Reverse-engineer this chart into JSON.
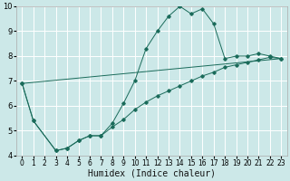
{
  "title": "",
  "xlabel": "Humidex (Indice chaleur)",
  "bg_color": "#cce8e8",
  "grid_color": "#ffffff",
  "line_color": "#1a6b5a",
  "xlim": [
    -0.5,
    23.5
  ],
  "ylim": [
    4,
    10
  ],
  "xticks": [
    0,
    1,
    2,
    3,
    4,
    5,
    6,
    7,
    8,
    9,
    10,
    11,
    12,
    13,
    14,
    15,
    16,
    17,
    18,
    19,
    20,
    21,
    22,
    23
  ],
  "yticks": [
    4,
    5,
    6,
    7,
    8,
    9,
    10
  ],
  "main_x": [
    0,
    1,
    3,
    4,
    5,
    6,
    7,
    8,
    9,
    10,
    11,
    12,
    13,
    14,
    15,
    16,
    17,
    18,
    19,
    20,
    21,
    22,
    23
  ],
  "main_y": [
    6.9,
    5.4,
    4.2,
    4.3,
    4.6,
    4.8,
    4.8,
    5.3,
    6.1,
    7.0,
    8.3,
    9.0,
    9.6,
    10.0,
    9.7,
    9.9,
    9.3,
    7.9,
    8.0,
    8.0,
    8.1,
    8.0,
    7.9
  ],
  "line2_x": [
    0,
    1,
    3,
    4,
    5,
    6,
    7,
    8,
    9,
    10,
    11,
    12,
    13,
    14,
    15,
    16,
    17,
    18,
    19,
    20,
    21,
    22,
    23
  ],
  "line2_y": [
    6.9,
    5.4,
    4.2,
    4.3,
    4.6,
    4.8,
    4.8,
    5.15,
    5.45,
    5.85,
    6.15,
    6.4,
    6.6,
    6.8,
    7.0,
    7.2,
    7.35,
    7.55,
    7.65,
    7.75,
    7.85,
    7.95,
    7.9
  ],
  "line3_x": [
    0,
    23
  ],
  "line3_y": [
    6.9,
    7.9
  ],
  "xlabel_fontsize": 7,
  "tick_fontsize": 5.5
}
